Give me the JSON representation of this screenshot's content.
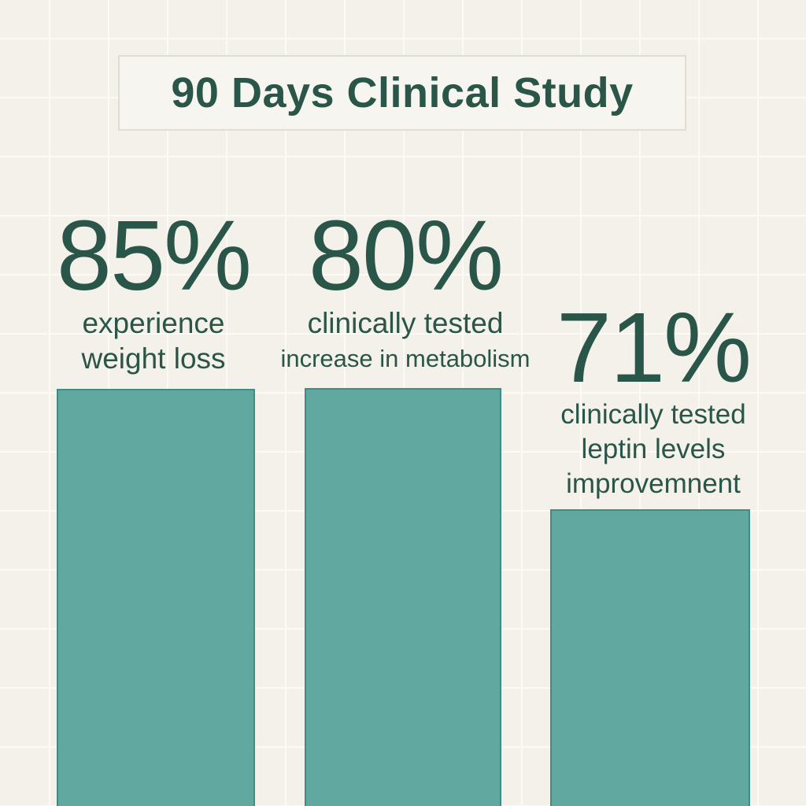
{
  "chart_data": {
    "type": "bar",
    "title": "90 Days Clinical Study",
    "unit": "percent",
    "legend": "none",
    "axes": "none",
    "grid": "subtle off-white background grid, 75px squares",
    "layout": "three infographic columns; percentage value and caption above each bar; bars extend to bottom edge of image",
    "categories": [
      "experience weight loss",
      "clinically tested increase in metabolism",
      "clinically tested leptin levels improvemnent"
    ],
    "values": [
      85,
      80,
      71
    ],
    "series": [
      {
        "display_value": "85%",
        "value": 85,
        "label_lines": [
          "experience",
          "weight loss"
        ]
      },
      {
        "display_value": "80%",
        "value": 80,
        "label_lines": [
          "clinically tested",
          "increase in metabolism"
        ]
      },
      {
        "display_value": "71%",
        "value": 71,
        "label_lines": [
          "clinically tested",
          "leptin levels",
          "improvemnent"
        ]
      }
    ]
  },
  "colors": {
    "background": "#f4f1ea",
    "grid_line": "#fbfaf6",
    "text_green": "#2a5649",
    "bar_fill": "#61a8a0",
    "bar_border": "#3f8e85",
    "title_box_bg": "#f7f5f0",
    "title_box_border": "#e0ddd4"
  }
}
